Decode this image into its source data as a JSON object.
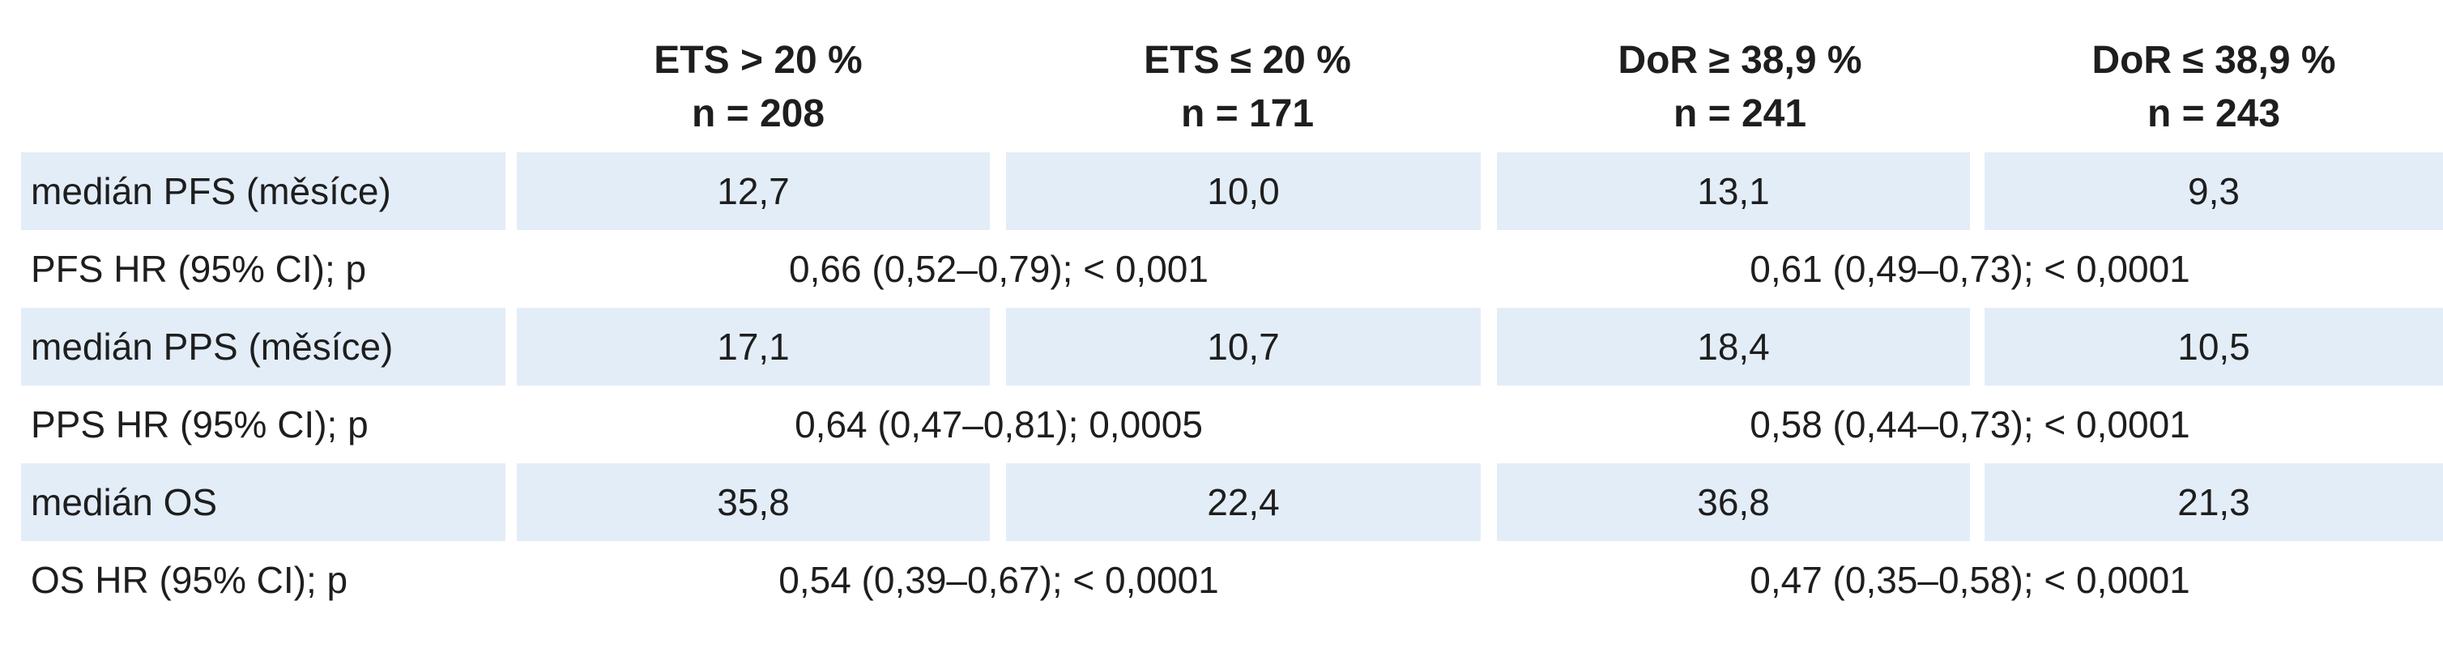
{
  "table": {
    "headers": [
      {
        "line1": "ETS > 20 %",
        "line2": "n = 208"
      },
      {
        "line1": "ETS ≤ 20 %",
        "line2": "n = 171"
      },
      {
        "line1": "DoR ≥ 38,9 %",
        "line2": "n = 241"
      },
      {
        "line1": "DoR ≤ 38,9 %",
        "line2": "n = 243"
      }
    ],
    "rows": [
      {
        "label": "medián PFS (měsíce)",
        "values": [
          "12,7",
          "10,0",
          "13,1",
          "9,3"
        ]
      },
      {
        "label": "PFS HR (95% CI); p",
        "ets": "0,66 (0,52–0,79); < 0,001",
        "dor": "0,61 (0,49–0,73); < 0,0001"
      },
      {
        "label": "medián PPS (měsíce)",
        "values": [
          "17,1",
          "10,7",
          "18,4",
          "10,5"
        ]
      },
      {
        "label": "PPS HR (95% CI); p",
        "ets": "0,64 (0,47–0,81); 0,0005",
        "dor": "0,58 (0,44–0,73); < 0,0001"
      },
      {
        "label": "medián OS",
        "values": [
          "35,8",
          "22,4",
          "36,8",
          "21,3"
        ]
      },
      {
        "label": "OS HR (95% CI); p",
        "ets": "0,54 (0,39–0,67); < 0,0001",
        "dor": "0,47 (0,35–0,58); < 0,0001"
      }
    ]
  }
}
